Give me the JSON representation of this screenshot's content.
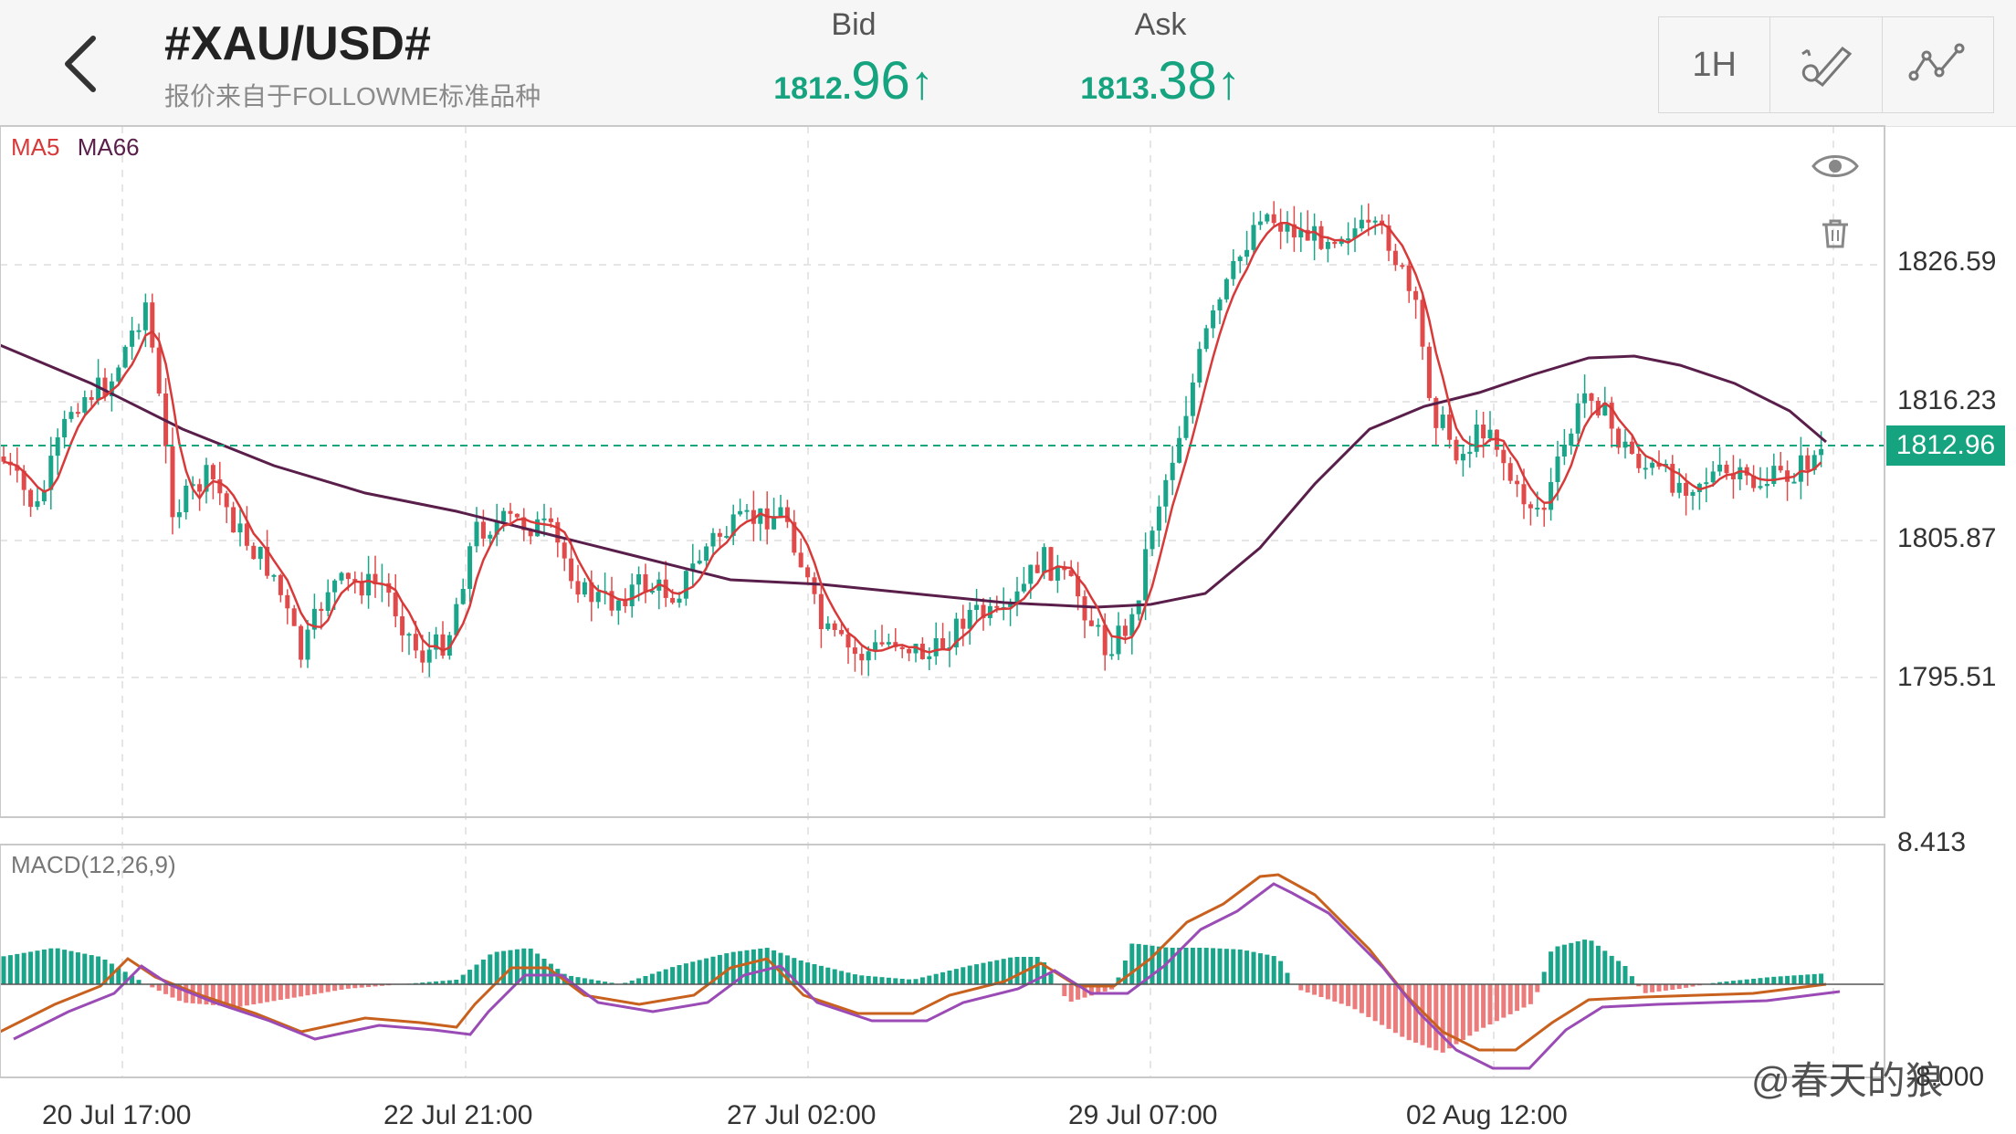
{
  "header": {
    "back_icon": "chevron-left-icon",
    "symbol": "#XAU/USD#",
    "source": "报价来自于FOLLOWME标准品种",
    "bid": {
      "label": "Bid",
      "value_small": "1812.",
      "value_big": "96",
      "arrow": "↑"
    },
    "ask": {
      "label": "Ask",
      "value_small": "1813.",
      "value_big": "38",
      "arrow": "↑"
    },
    "tools": {
      "timeframe": "1H",
      "draw_icon": "pen-ruler-icon",
      "indicator_icon": "line-chart-icon"
    }
  },
  "main_chart": {
    "legend": {
      "ma5": "MA5",
      "ma66": "MA66"
    },
    "price_ticks": [
      "1826.59",
      "1816.23",
      "1805.87",
      "1795.51"
    ],
    "current_price": "1812.96",
    "eye_icon": "eye-icon",
    "trash_icon": "trash-icon"
  },
  "macd_panel": {
    "legend": "MACD(12,26,9)",
    "top_tick": "8.413",
    "bottom_tick": "-8.000"
  },
  "time_ticks": [
    "20 Jul 17:00",
    "22 Jul 21:00",
    "27 Jul 02:00",
    "29 Jul 07:00",
    "02 Aug 12:00"
  ],
  "watermark": "@春天的狼",
  "colors": {
    "up": "#1aa58a",
    "down": "#e04a4a",
    "ma5": "#d83a3a",
    "ma66": "#5a1e4a",
    "macd_line": "#c8611e",
    "signal_line": "#9a4bb5",
    "accent": "#16a37f"
  }
}
